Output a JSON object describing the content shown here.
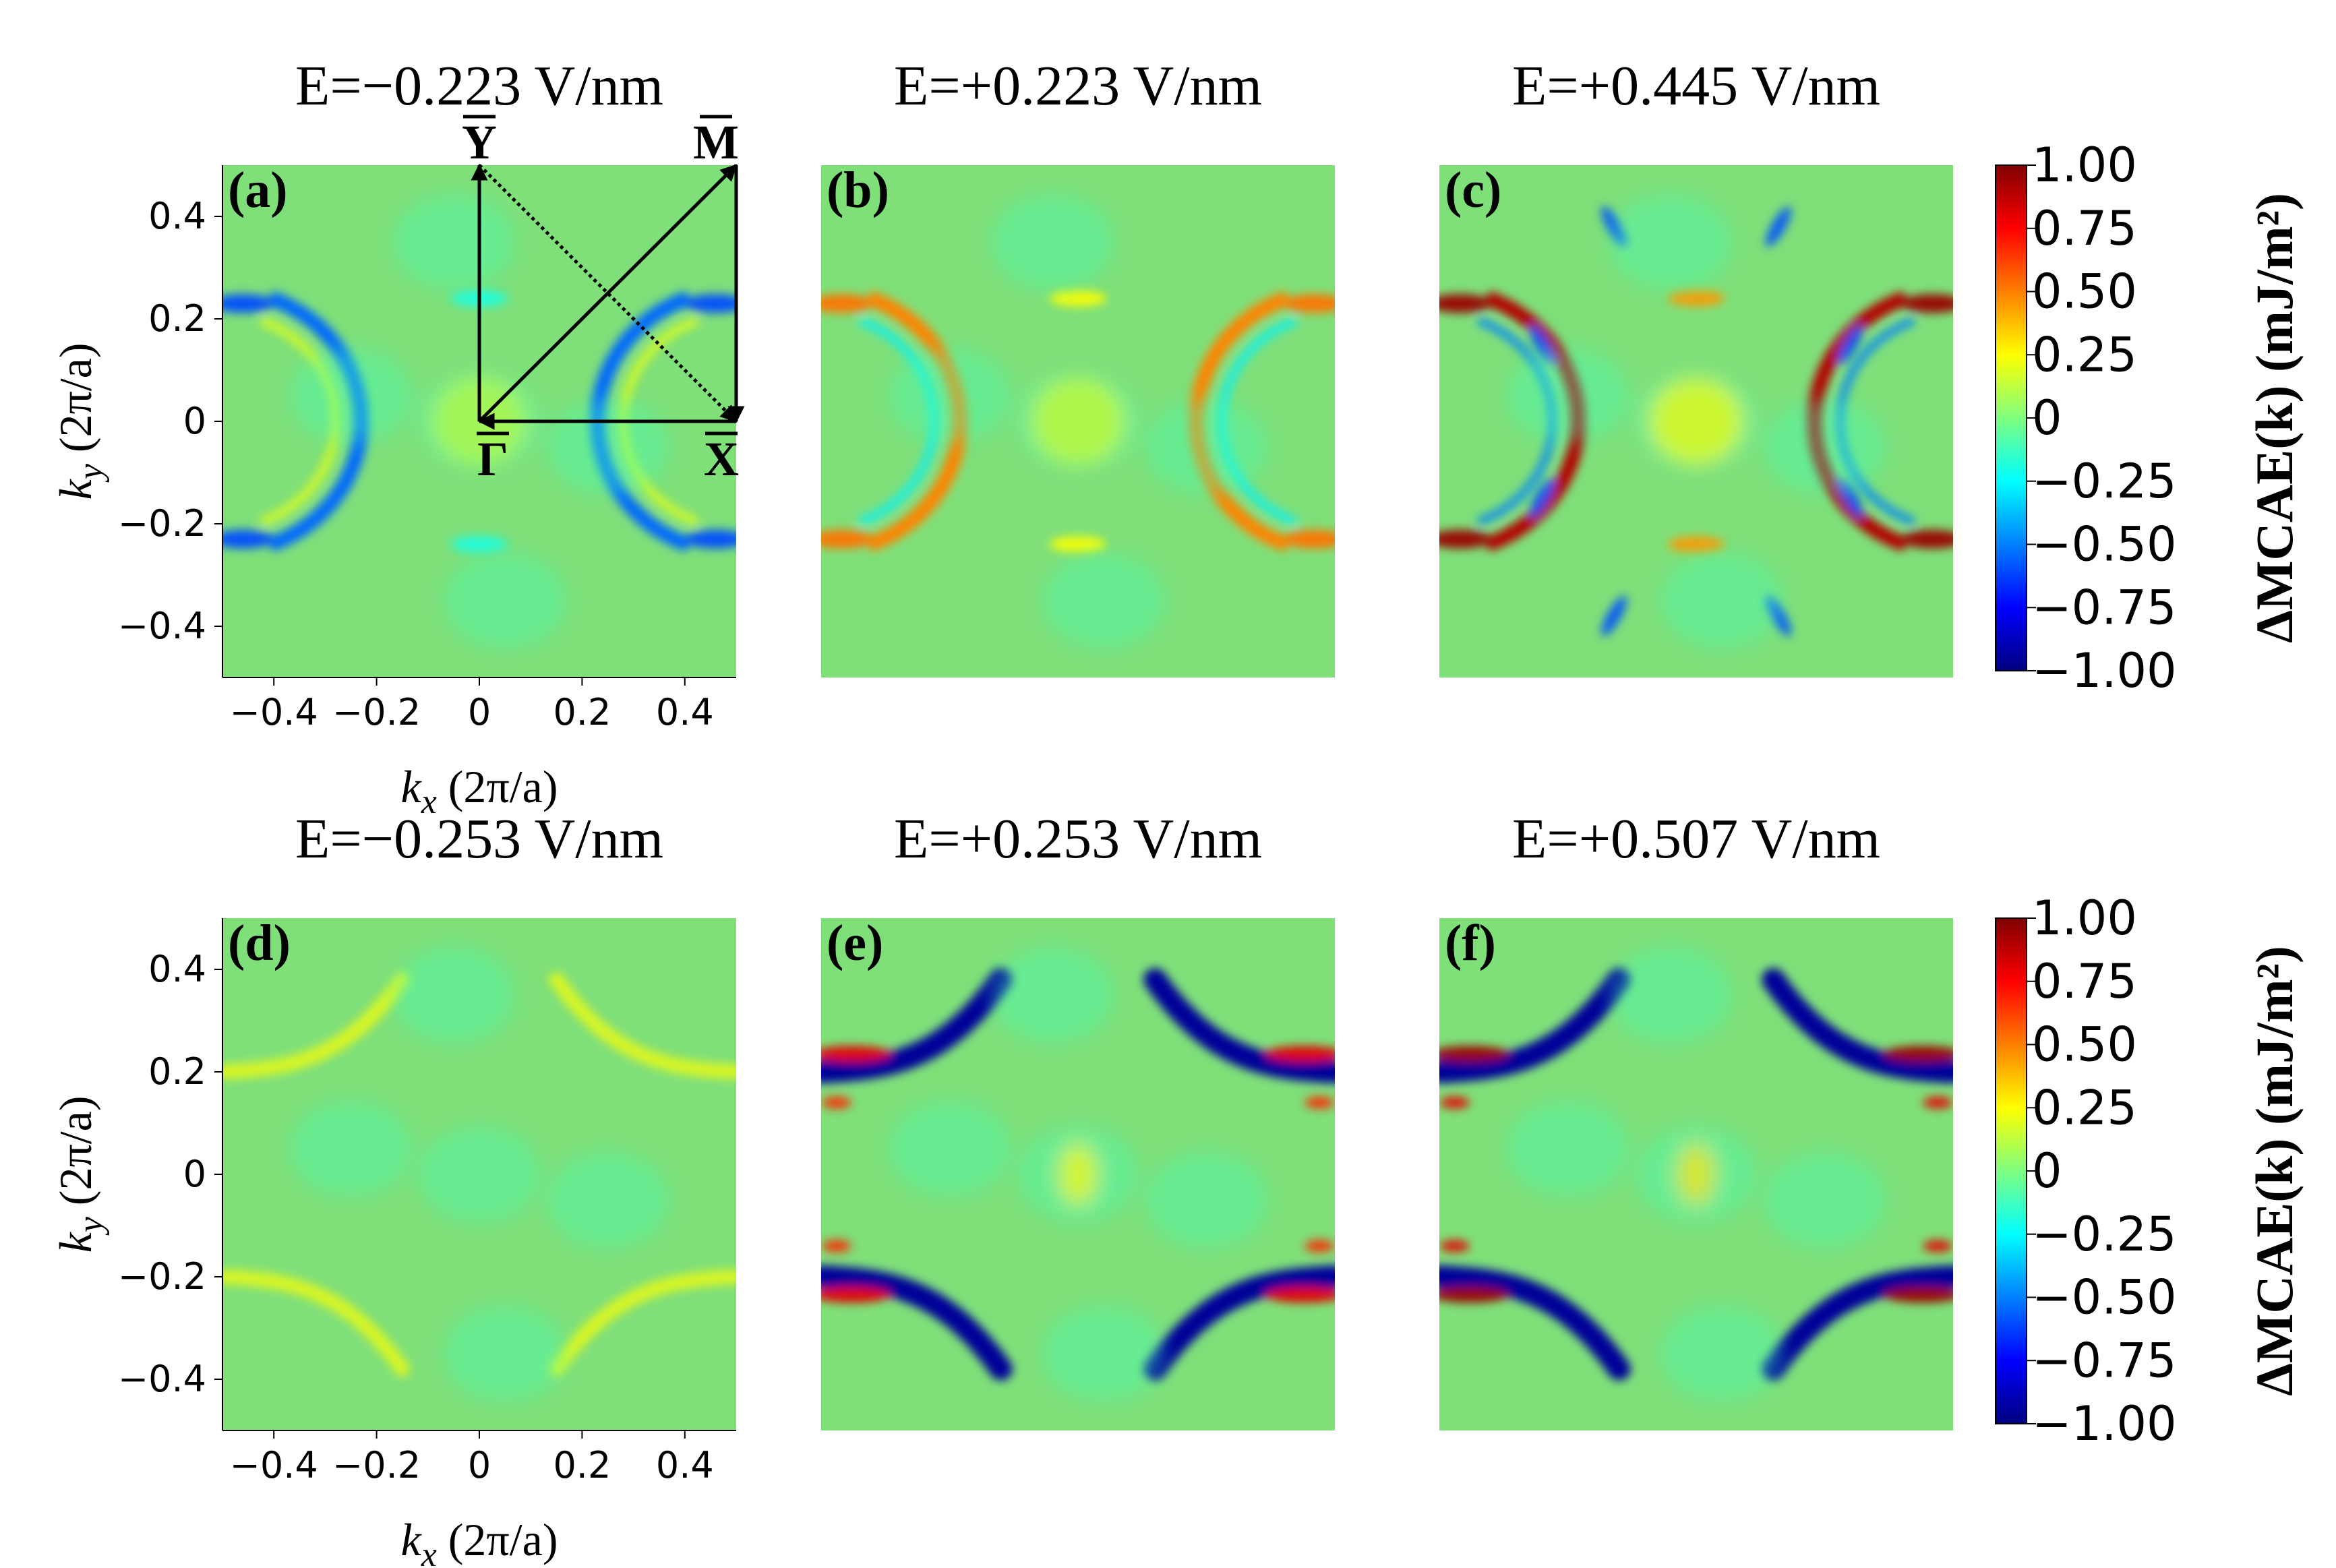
{
  "chart_data": [
    {
      "type": "heatmap",
      "panel": "(a)",
      "title": "E=−0.223 V/nm",
      "pattern": "rings",
      "intensity": 0.35,
      "ticks_x": [
        "−0.4",
        "−0.2",
        "0",
        "0.2",
        "0.4"
      ],
      "ticks_y": [
        "0.4",
        "0.2",
        "0",
        "−0.2",
        "−0.4"
      ],
      "xlabel": {
        "sym": "k",
        "sub": "x",
        "unit": " (2π/a)"
      },
      "ylabel": {
        "sym": "k",
        "sub": "y",
        "unit": " (2π/a)"
      },
      "xlim": [
        -0.5,
        0.5
      ],
      "ylim": [
        -0.5,
        0.5
      ],
      "high_symmetry": {
        "Gamma": "Γ",
        "X": "X",
        "M": "M",
        "Y": "Y"
      }
    },
    {
      "type": "heatmap",
      "panel": "(b)",
      "title": "E=+0.223 V/nm",
      "pattern": "rings",
      "intensity": 0.55,
      "xlim": [
        -0.5,
        0.5
      ],
      "ylim": [
        -0.5,
        0.5
      ]
    },
    {
      "type": "heatmap",
      "panel": "(c)",
      "title": "E=+0.445 V/nm",
      "pattern": "rings",
      "intensity": 1.0,
      "xlim": [
        -0.5,
        0.5
      ],
      "ylim": [
        -0.5,
        0.5
      ]
    },
    {
      "type": "heatmap",
      "panel": "(d)",
      "title": "E=−0.253 V/nm",
      "pattern": "arcs",
      "intensity": 0.3,
      "ticks_x": [
        "−0.4",
        "−0.2",
        "0",
        "0.2",
        "0.4"
      ],
      "ticks_y": [
        "0.4",
        "0.2",
        "0",
        "−0.2",
        "−0.4"
      ],
      "xlabel": {
        "sym": "k",
        "sub": "x",
        "unit": " (2π/a)"
      },
      "ylabel": {
        "sym": "k",
        "sub": "y",
        "unit": " (2π/a)"
      },
      "xlim": [
        -0.5,
        0.5
      ],
      "ylim": [
        -0.5,
        0.5
      ]
    },
    {
      "type": "heatmap",
      "panel": "(e)",
      "title": "E=+0.253 V/nm",
      "pattern": "arcs",
      "intensity": 0.85,
      "xlim": [
        -0.5,
        0.5
      ],
      "ylim": [
        -0.5,
        0.5
      ]
    },
    {
      "type": "heatmap",
      "panel": "(f)",
      "title": "E=+0.507 V/nm",
      "pattern": "arcs",
      "intensity": 1.0,
      "xlim": [
        -0.5,
        0.5
      ],
      "ylim": [
        -0.5,
        0.5
      ]
    }
  ],
  "colorbar": {
    "colormap": "jet",
    "range": [
      -1.0,
      1.0
    ],
    "ticks": [
      "1.00",
      "0.75",
      "0.50",
      "0.25",
      "0",
      "−0.25",
      "−0.50",
      "−0.75",
      "−1.00"
    ],
    "label": "ΔMCAE(k) (mJ/m²)",
    "stops": [
      "#00007f",
      "#0000ff",
      "#007fff",
      "#00ffff",
      "#7fff7f",
      "#ffff00",
      "#ff7f00",
      "#ff0000",
      "#7f0000"
    ]
  },
  "colors": {
    "background_field": "#7fe07a"
  }
}
